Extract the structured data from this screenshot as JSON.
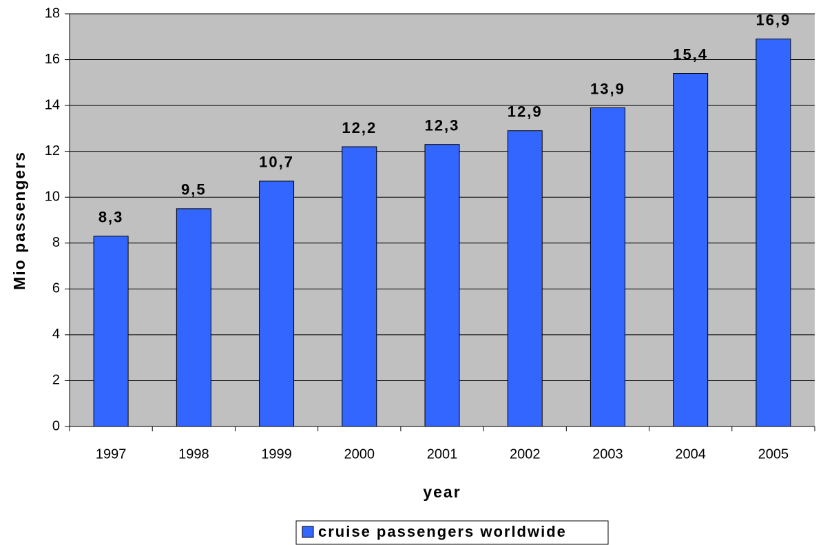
{
  "chart_data": {
    "type": "bar",
    "x_label": "year",
    "y_label": "Mio passengers",
    "categories": [
      "1997",
      "1998",
      "1999",
      "2000",
      "2001",
      "2002",
      "2003",
      "2004",
      "2005"
    ],
    "series": [
      {
        "name": "cruise passengers worldwide",
        "color": "#3366ff",
        "values": [
          8.3,
          9.5,
          10.7,
          12.2,
          12.3,
          12.9,
          13.9,
          15.4,
          16.9
        ],
        "value_labels": [
          "8,3",
          "9,5",
          "10,7",
          "12,2",
          "12,3",
          "12,9",
          "13,9",
          "15,4",
          "16,9"
        ]
      }
    ],
    "ylim": [
      0,
      18
    ],
    "yticks": [
      0,
      2,
      4,
      6,
      8,
      10,
      12,
      14,
      16,
      18
    ],
    "grid": true,
    "plot_background": "#c0c0c0",
    "legend": "bottom"
  }
}
